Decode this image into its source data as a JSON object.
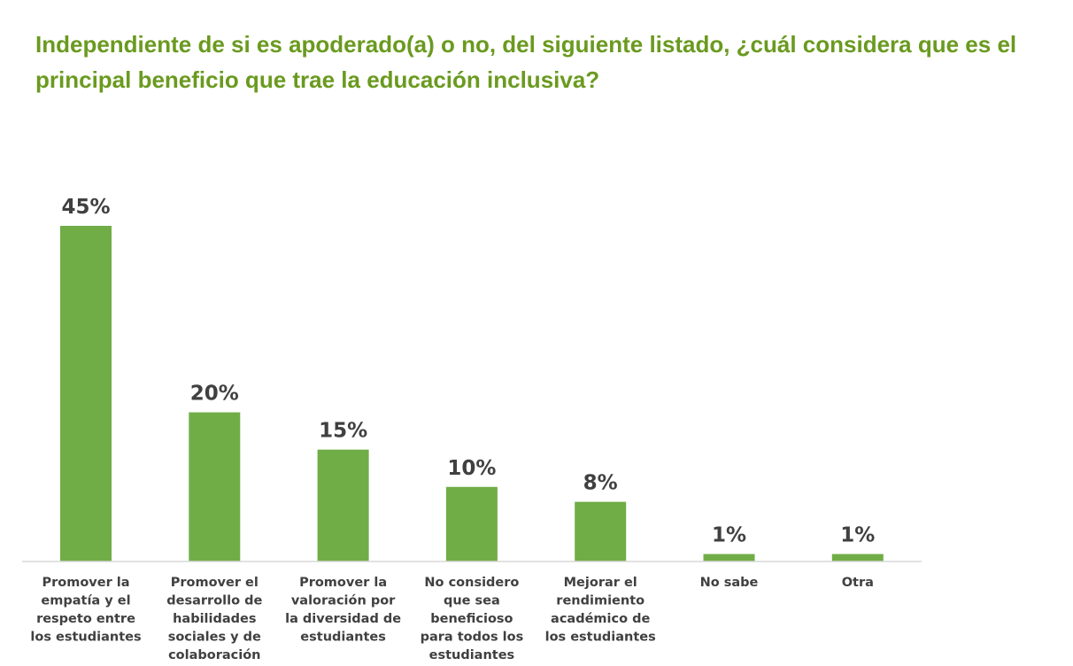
{
  "chart_data": {
    "type": "bar",
    "title": "Independiente de si es apoderado(a) o no, del siguiente listado, ¿cuál considera que es el principal beneficio que trae la educación inclusiva?",
    "categories": [
      "Promover la empatía y el respeto entre los estudiantes",
      "Promover el desarrollo de habilidades sociales y de colaboración",
      "Promover la valoración por la diversidad de estudiantes",
      "No considero que sea beneficioso para todos los estudiantes",
      "Mejorar el rendimiento académico de los estudiantes",
      "No sabe",
      "Otra"
    ],
    "category_lines": [
      [
        "Promover la",
        "empatía y el",
        "respeto entre",
        "los estudiantes"
      ],
      [
        "Promover el",
        "desarrollo de",
        "habilidades",
        "sociales y de",
        "colaboración"
      ],
      [
        "Promover la",
        "valoración por",
        "la diversidad de",
        "estudiantes"
      ],
      [
        "No considero",
        "que sea",
        "beneficioso",
        "para todos los",
        "estudiantes"
      ],
      [
        "Mejorar el",
        "rendimiento",
        "académico de",
        "los estudiantes"
      ],
      [
        "No sabe"
      ],
      [
        "Otra"
      ]
    ],
    "values": [
      45,
      20,
      15,
      10,
      8,
      1,
      1
    ],
    "data_labels": [
      "45%",
      "20%",
      "15%",
      "10%",
      "8%",
      "1%",
      "1%"
    ],
    "unit": "%",
    "ylim": [
      0,
      45
    ],
    "grid": false,
    "legend": "none",
    "colors": {
      "bar": "#70ad47",
      "title": "#6a9a1f",
      "text": "#404040",
      "axis": "#d9d9d9"
    }
  }
}
